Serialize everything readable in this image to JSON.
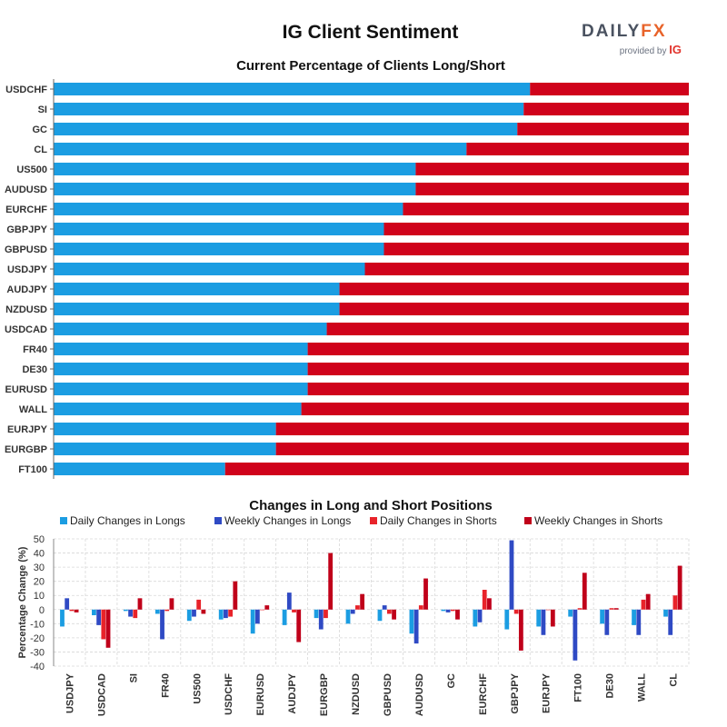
{
  "header": {
    "title": "IG Client Sentiment",
    "logo_main_a": "DAILY",
    "logo_main_b": "FX",
    "logo_sub": "provided by",
    "logo_ig": "IG"
  },
  "colors": {
    "long": "#1b9de2",
    "short": "#d0021b",
    "daily_long": "#1b9de2",
    "weekly_long": "#2f4ac4",
    "daily_short": "#e8232a",
    "weekly_short": "#c0001a",
    "grid": "#d8d8d8"
  },
  "chart_data": [
    {
      "type": "bar",
      "orientation": "horizontal",
      "stacked": true,
      "title": "Current Percentage of Clients Long/Short",
      "xlim": [
        0,
        100
      ],
      "categories": [
        "USDCHF",
        "SI",
        "GC",
        "CL",
        "US500",
        "AUDUSD",
        "EURCHF",
        "GBPJPY",
        "GBPUSD",
        "USDJPY",
        "AUDJPY",
        "NZDUSD",
        "USDCAD",
        "FR40",
        "DE30",
        "EURUSD",
        "WALL",
        "EURJPY",
        "EURGBP",
        "FT100"
      ],
      "series": [
        {
          "name": "long",
          "values": [
            75,
            74,
            73,
            65,
            57,
            57,
            55,
            52,
            52,
            49,
            45,
            45,
            43,
            40,
            40,
            40,
            39,
            35,
            35,
            27
          ]
        },
        {
          "name": "short",
          "values": [
            25,
            26,
            27,
            35,
            43,
            43,
            45,
            48,
            48,
            51,
            55,
            55,
            57,
            60,
            60,
            60,
            61,
            65,
            65,
            73
          ]
        }
      ]
    },
    {
      "type": "bar",
      "title": "Changes in Long and Short Positions",
      "ylabel": "Percentage Change (%)",
      "ylim": [
        -40,
        50
      ],
      "yticks": [
        -40,
        -30,
        -20,
        -10,
        0,
        10,
        20,
        30,
        40,
        50
      ],
      "legend_position": "top",
      "categories": [
        "USDJPY",
        "USDCAD",
        "SI",
        "FR40",
        "US500",
        "USDCHF",
        "EURUSD",
        "AUDJPY",
        "EURGBP",
        "NZDUSD",
        "GBPUSD",
        "AUDUSD",
        "GC",
        "EURCHF",
        "GBPJPY",
        "EURJPY",
        "FT100",
        "DE30",
        "WALL",
        "CL"
      ],
      "series": [
        {
          "name": "Daily Changes in Longs",
          "values": [
            -12,
            -4,
            -1,
            -3,
            -8,
            -7,
            -17,
            -11,
            -6,
            -10,
            -8,
            -17,
            -1,
            -12,
            -14,
            -12,
            -5,
            -10,
            -11,
            -5
          ]
        },
        {
          "name": "Weekly Changes in Longs",
          "values": [
            8,
            -11,
            -5,
            -21,
            -5,
            -6,
            -10,
            12,
            -14,
            -3,
            3,
            -24,
            -2,
            -9,
            49,
            -18,
            -36,
            -18,
            -18,
            -18
          ]
        },
        {
          "name": "Daily Changes in Shorts",
          "values": [
            -1,
            -21,
            -6,
            -1,
            7,
            -5,
            0,
            -2,
            -6,
            3,
            -3,
            3,
            -1,
            14,
            -3,
            0,
            1,
            1,
            7,
            10
          ]
        },
        {
          "name": "Weekly Changes in Shorts",
          "values": [
            -2,
            -27,
            8,
            8,
            -3,
            20,
            3,
            -23,
            40,
            11,
            -7,
            22,
            -7,
            8,
            -29,
            -12,
            26,
            1,
            11,
            31
          ]
        }
      ]
    }
  ]
}
